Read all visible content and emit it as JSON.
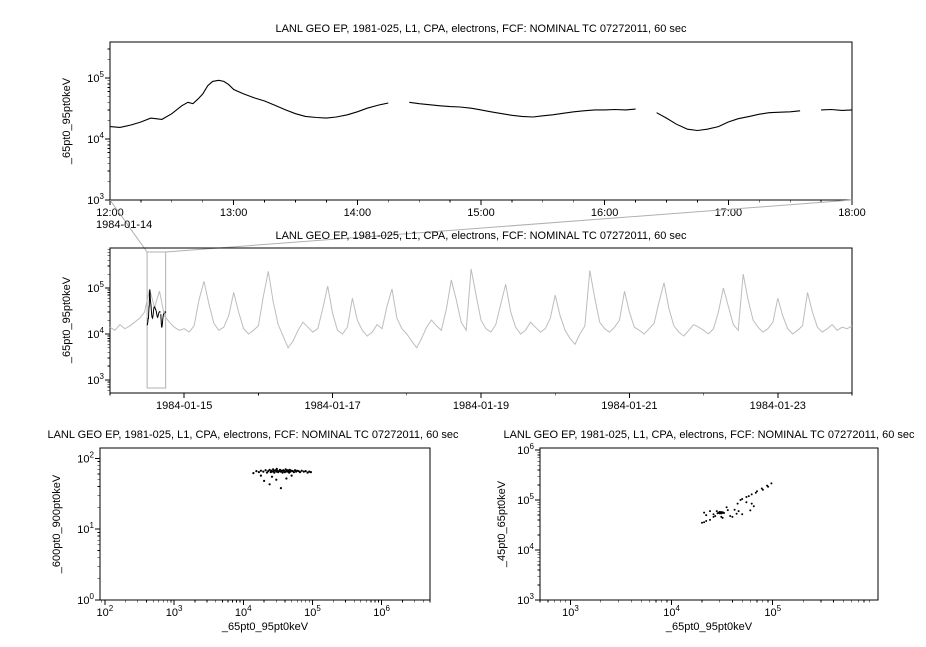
{
  "page": {
    "background": "#ffffff",
    "text_color": "#000000"
  },
  "chart_data": [
    {
      "id": "detail-timeseries",
      "type": "line",
      "title": "LANL GEO EP, 1981-025, L1, CPA, electrons, FCF: NOMINAL TC 07272011, 60 sec",
      "ylabel": "_65pt0_95pt0keV",
      "xlabel": "",
      "grid": false,
      "x_axis": {
        "kind": "time",
        "date": "1984-01-14",
        "start_hour": 12,
        "end_hour": 18,
        "major_tick_hours": [
          12,
          13,
          14,
          15,
          16,
          17,
          18
        ],
        "tick_labels": [
          "12:00",
          "13:00",
          "14:00",
          "15:00",
          "16:00",
          "17:00",
          "18:00"
        ],
        "minor_tick_step_hours": 0.25
      },
      "y_axis": {
        "scale": "log",
        "min": 1000,
        "max": 390000,
        "major_tick_exponents": [
          3,
          4,
          5
        ]
      },
      "series": [
        {
          "name": "_65pt0_95pt0keV",
          "color": "#000000",
          "points_hour_value": [
            [
              12.0,
              16000
            ],
            [
              12.08,
              15500
            ],
            [
              12.17,
              17000
            ],
            [
              12.25,
              19000
            ],
            [
              12.33,
              22000
            ],
            [
              12.42,
              21000
            ],
            [
              12.5,
              26000
            ],
            [
              12.58,
              35000
            ],
            [
              12.63,
              40000
            ],
            [
              12.67,
              38000
            ],
            [
              12.71,
              45000
            ],
            [
              12.75,
              55000
            ],
            [
              12.79,
              75000
            ],
            [
              12.83,
              88000
            ],
            [
              12.88,
              92000
            ],
            [
              12.92,
              88000
            ],
            [
              12.96,
              78000
            ],
            [
              13.0,
              65000
            ],
            [
              13.08,
              55000
            ],
            [
              13.17,
              47000
            ],
            [
              13.25,
              42000
            ],
            [
              13.33,
              36000
            ],
            [
              13.42,
              30000
            ],
            [
              13.5,
              26000
            ],
            [
              13.58,
              23500
            ],
            [
              13.67,
              22500
            ],
            [
              13.75,
              22000
            ],
            [
              13.83,
              23000
            ],
            [
              13.92,
              25000
            ],
            [
              14.0,
              28000
            ],
            [
              14.08,
              32000
            ],
            [
              14.17,
              36000
            ],
            [
              14.25,
              39000
            ],
            [
              14.3,
              null
            ],
            [
              14.42,
              40000
            ],
            [
              14.5,
              38000
            ],
            [
              14.58,
              36500
            ],
            [
              14.67,
              35000
            ],
            [
              14.75,
              34000
            ],
            [
              14.83,
              33500
            ],
            [
              14.92,
              32000
            ],
            [
              15.0,
              30000
            ],
            [
              15.08,
              28000
            ],
            [
              15.17,
              26000
            ],
            [
              15.25,
              24500
            ],
            [
              15.33,
              23500
            ],
            [
              15.42,
              23000
            ],
            [
              15.5,
              24000
            ],
            [
              15.58,
              25000
            ],
            [
              15.67,
              26500
            ],
            [
              15.75,
              28000
            ],
            [
              15.83,
              29000
            ],
            [
              15.92,
              30000
            ],
            [
              16.0,
              30000
            ],
            [
              16.08,
              30500
            ],
            [
              16.17,
              30000
            ],
            [
              16.25,
              31000
            ],
            [
              16.3,
              null
            ],
            [
              16.42,
              27000
            ],
            [
              16.5,
              22000
            ],
            [
              16.58,
              17500
            ],
            [
              16.67,
              14500
            ],
            [
              16.75,
              13800
            ],
            [
              16.83,
              14500
            ],
            [
              16.92,
              16000
            ],
            [
              17.0,
              19000
            ],
            [
              17.08,
              21500
            ],
            [
              17.17,
              23500
            ],
            [
              17.25,
              25500
            ],
            [
              17.33,
              27000
            ],
            [
              17.42,
              27500
            ],
            [
              17.5,
              28000
            ],
            [
              17.58,
              29000
            ],
            [
              17.63,
              null
            ],
            [
              17.75,
              30000
            ],
            [
              17.83,
              30500
            ],
            [
              17.92,
              29500
            ],
            [
              18.0,
              30000
            ]
          ]
        }
      ]
    },
    {
      "id": "context-timeseries",
      "type": "line",
      "title": "LANL GEO EP, 1981-025, L1, CPA, electrons, FCF: NOMINAL TC 07272011, 60 sec",
      "ylabel": "_65pt0_95pt0keV",
      "xlabel": "",
      "grid": false,
      "x_axis": {
        "kind": "time",
        "epoch_date": "1984-01-14",
        "start_day": 0,
        "end_day": 10,
        "major_ticks": [
          {
            "day": 1,
            "label": "1984-01-15"
          },
          {
            "day": 3,
            "label": "1984-01-17"
          },
          {
            "day": 5,
            "label": "1984-01-19"
          },
          {
            "day": 7,
            "label": "1984-01-21"
          },
          {
            "day": 9,
            "label": "1984-01-23"
          }
        ],
        "minor_tick_step_days": 1
      },
      "y_axis": {
        "scale": "log",
        "min": 520,
        "max": 740000,
        "major_tick_exponents": [
          3,
          4,
          5
        ]
      },
      "series": [
        {
          "name": "_65pt0_95pt0keV",
          "color": "#bdbdbd",
          "x_start_day": 0,
          "x_step_days": 0.0666667,
          "values": [
            14000,
            12000,
            16000,
            13000,
            15000,
            18000,
            22000,
            30000,
            95000,
            38000,
            85000,
            25000,
            18000,
            14000,
            12000,
            13000,
            11000,
            15000,
            55000,
            140000,
            45000,
            17000,
            12000,
            14000,
            25000,
            80000,
            30000,
            13000,
            10000,
            12000,
            15000,
            65000,
            230000,
            50000,
            16000,
            9000,
            5000,
            7000,
            12000,
            18000,
            14000,
            11000,
            13000,
            35000,
            110000,
            28000,
            12000,
            10000,
            14000,
            60000,
            20000,
            12000,
            9000,
            11000,
            16000,
            13000,
            40000,
            95000,
            22000,
            13000,
            10000,
            7000,
            5000,
            8000,
            14000,
            20000,
            15000,
            12000,
            35000,
            150000,
            55000,
            18000,
            12000,
            260000,
            70000,
            20000,
            13000,
            11000,
            16000,
            45000,
            120000,
            30000,
            14000,
            10000,
            12000,
            18000,
            14000,
            11000,
            13000,
            22000,
            70000,
            25000,
            12000,
            8000,
            6000,
            10000,
            15000,
            240000,
            60000,
            18000,
            13000,
            11000,
            14000,
            20000,
            85000,
            30000,
            14000,
            12000,
            10000,
            13000,
            17000,
            50000,
            130000,
            35000,
            15000,
            11000,
            9000,
            12000,
            16000,
            14000,
            12000,
            10000,
            13000,
            30000,
            100000,
            40000,
            16000,
            12000,
            200000,
            55000,
            20000,
            14000,
            11000,
            13000,
            18000,
            60000,
            25000,
            13000,
            10000,
            12000,
            15000,
            80000,
            30000,
            14000,
            11000,
            13000,
            16000,
            12000,
            14000,
            13000,
            15000
          ]
        }
      ],
      "highlight": {
        "color": "#000000",
        "start_day": 0.5,
        "end_day": 0.75,
        "box_color": "#b0b0b0"
      }
    },
    {
      "id": "scatter-600-900-vs-65-95",
      "type": "scatter",
      "title": "LANL GEO EP, 1981-025, L1, CPA, electrons, FCF: NOMINAL TC 07272011, 60 sec",
      "xlabel": "_65pt0_95pt0keV",
      "ylabel": "_600pt0_900pt0keV",
      "grid": false,
      "color": "#000000",
      "x_axis": {
        "scale": "log",
        "min": 85,
        "max": 5000000,
        "major_tick_exponents": [
          2,
          3,
          4,
          5,
          6
        ]
      },
      "y_axis": {
        "scale": "log",
        "min": 1,
        "max": 140,
        "major_tick_exponents": [
          0,
          1,
          2
        ]
      },
      "points": [
        [
          14000,
          62
        ],
        [
          15500,
          66
        ],
        [
          16800,
          64
        ],
        [
          18000,
          67
        ],
        [
          19500,
          65
        ],
        [
          21000,
          68
        ],
        [
          22000,
          63
        ],
        [
          23000,
          66
        ],
        [
          24000,
          69
        ],
        [
          25000,
          64
        ],
        [
          25500,
          67
        ],
        [
          26000,
          65
        ],
        [
          27000,
          70
        ],
        [
          27500,
          66
        ],
        [
          28000,
          63
        ],
        [
          29000,
          68
        ],
        [
          30000,
          65
        ],
        [
          30500,
          71
        ],
        [
          31000,
          67
        ],
        [
          32000,
          64
        ],
        [
          33000,
          66
        ],
        [
          34000,
          69
        ],
        [
          35000,
          65
        ],
        [
          36000,
          67
        ],
        [
          37000,
          63
        ],
        [
          38000,
          68
        ],
        [
          39000,
          66
        ],
        [
          40000,
          64
        ],
        [
          41000,
          70
        ],
        [
          42000,
          67
        ],
        [
          43000,
          65
        ],
        [
          44000,
          68
        ],
        [
          45000,
          66
        ],
        [
          46000,
          63
        ],
        [
          47000,
          69
        ],
        [
          48000,
          65
        ],
        [
          50000,
          67
        ],
        [
          52000,
          66
        ],
        [
          54000,
          64
        ],
        [
          56000,
          68
        ],
        [
          58000,
          65
        ],
        [
          60000,
          67
        ],
        [
          63000,
          66
        ],
        [
          66000,
          64
        ],
        [
          70000,
          67
        ],
        [
          75000,
          65
        ],
        [
          80000,
          66
        ],
        [
          85000,
          63
        ],
        [
          90000,
          65
        ],
        [
          95000,
          64
        ],
        [
          20000,
          48
        ],
        [
          24000,
          43
        ],
        [
          30000,
          50
        ],
        [
          35000,
          38
        ],
        [
          42000,
          52
        ],
        [
          26000,
          55
        ],
        [
          50000,
          57
        ],
        [
          18000,
          57
        ]
      ]
    },
    {
      "id": "scatter-45-65-vs-65-95",
      "type": "scatter",
      "title": "LANL GEO EP, 1981-025, L1, CPA, electrons, FCF: NOMINAL TC 07272011, 60 sec",
      "xlabel": "_65pt0_95pt0keV",
      "ylabel": "_45pt0_65pt0keV",
      "grid": false,
      "color": "#000000",
      "x_axis": {
        "scale": "log",
        "min": 500,
        "max": 1100000,
        "major_tick_exponents": [
          3,
          4,
          5
        ]
      },
      "y_axis": {
        "scale": "log",
        "min": 1000,
        "max": 1100000,
        "major_tick_exponents": [
          3,
          4,
          5,
          6
        ]
      },
      "points": [
        [
          28000,
          60000
        ],
        [
          35000,
          72000
        ],
        [
          45000,
          85000
        ],
        [
          55000,
          90000
        ],
        [
          62000,
          85000
        ],
        [
          65000,
          75000
        ],
        [
          60000,
          62000
        ],
        [
          50000,
          52000
        ],
        [
          40000,
          46000
        ],
        [
          32000,
          44000
        ],
        [
          26000,
          46000
        ],
        [
          22000,
          50000
        ],
        [
          21000,
          56000
        ],
        [
          24000,
          60000
        ],
        [
          26000,
          52000
        ],
        [
          30000,
          58000
        ],
        [
          36000,
          63000
        ],
        [
          42000,
          64000
        ],
        [
          46000,
          60000
        ],
        [
          44000,
          53000
        ],
        [
          38000,
          48000
        ],
        [
          31000,
          46000
        ],
        [
          27000,
          48000
        ],
        [
          29000,
          55000
        ],
        [
          30000,
          56000
        ],
        [
          31000,
          54000
        ],
        [
          32000,
          57000
        ],
        [
          30500,
          55500
        ],
        [
          29500,
          56500
        ],
        [
          31500,
          55000
        ],
        [
          30000,
          54000
        ],
        [
          32500,
          56000
        ],
        [
          31000,
          57500
        ],
        [
          28500,
          54500
        ],
        [
          33000,
          55000
        ],
        [
          48000,
          100000
        ],
        [
          55000,
          115000
        ],
        [
          62000,
          130000
        ],
        [
          70000,
          150000
        ],
        [
          78000,
          170000
        ],
        [
          88000,
          195000
        ],
        [
          97000,
          215000
        ],
        [
          90000,
          185000
        ],
        [
          80000,
          160000
        ],
        [
          68000,
          140000
        ],
        [
          58000,
          120000
        ],
        [
          50000,
          105000
        ],
        [
          20000,
          35000
        ],
        [
          22000,
          38000
        ],
        [
          24000,
          40000
        ],
        [
          21000,
          36000
        ]
      ]
    }
  ]
}
